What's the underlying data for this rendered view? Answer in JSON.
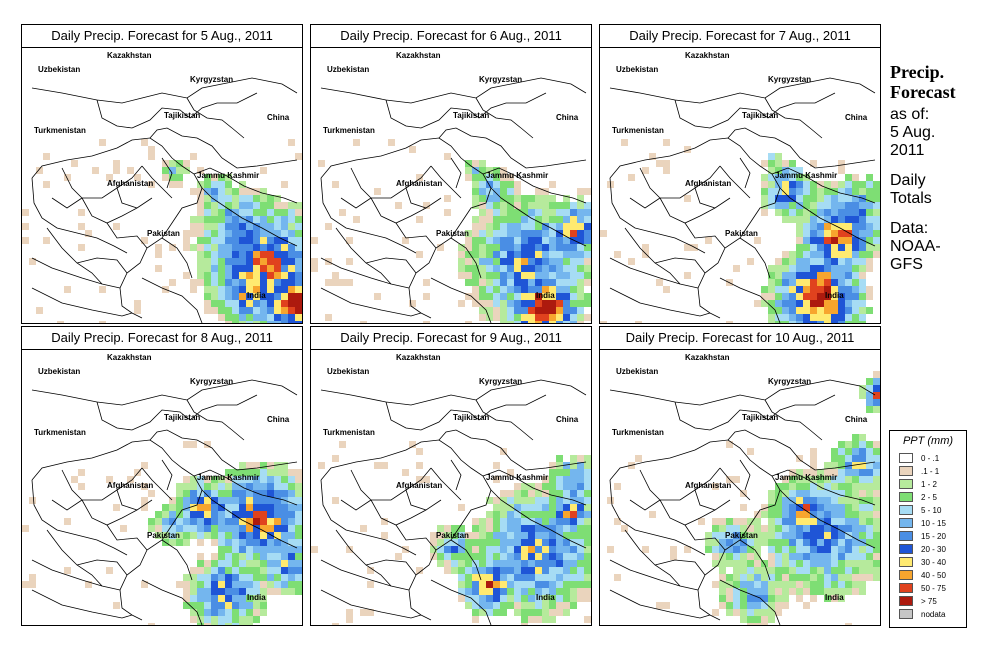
{
  "panels": [
    {
      "title": "Daily Precip. Forecast for  5 Aug., 2011",
      "day": 5
    },
    {
      "title": "Daily Precip. Forecast for  6 Aug., 2011",
      "day": 6
    },
    {
      "title": "Daily Precip. Forecast for  7 Aug., 2011",
      "day": 7
    },
    {
      "title": "Daily Precip. Forecast for  8 Aug., 2011",
      "day": 8
    },
    {
      "title": "Daily Precip. Forecast for  9 Aug., 2011",
      "day": 9
    },
    {
      "title": "Daily Precip. Forecast for  10 Aug., 2011",
      "day": 10
    }
  ],
  "map_labels": {
    "kazakhstan": "Kazakhstan",
    "uzbekistan": "Uzbekistan",
    "kyrgyzstan": "Kyrgyzstan",
    "tajikistan": "Tajikistan",
    "turkmenistan": "Turkmenistan",
    "china": "China",
    "afghanistan": "Afghanistan",
    "jammu_kashmir": "Jammu Kashmir",
    "pakistan": "Pakistan",
    "india": "India"
  },
  "side": {
    "title1": "Precip.",
    "title2": "Forecast",
    "asof": "as of:",
    "date1": "5 Aug.",
    "date2": "2011",
    "daily": "Daily",
    "totals": "Totals",
    "data": "Data:",
    "source1": "NOAA-",
    "source2": "GFS"
  },
  "legend": {
    "title": "PPT (mm)",
    "items": [
      {
        "label": "0 - .1",
        "color": "#ffffff"
      },
      {
        "label": ".1 - 1",
        "color": "#ead4bd"
      },
      {
        "label": "1 - 2",
        "color": "#b6ea9c"
      },
      {
        "label": "2 - 5",
        "color": "#7ede74"
      },
      {
        "label": "5 - 10",
        "color": "#a6dcf4"
      },
      {
        "label": "10 - 15",
        "color": "#74b6ee"
      },
      {
        "label": "15 - 20",
        "color": "#4a8ee4"
      },
      {
        "label": "20 - 30",
        "color": "#1f55d6"
      },
      {
        "label": "30 - 40",
        "color": "#ffea70"
      },
      {
        "label": "40 - 50",
        "color": "#f7a52e"
      },
      {
        "label": "50 - 75",
        "color": "#e0421e"
      },
      {
        "label": "> 75",
        "color": "#ad1a0e"
      },
      {
        "label": "nodata",
        "color": "#c6c6c6"
      }
    ]
  }
}
